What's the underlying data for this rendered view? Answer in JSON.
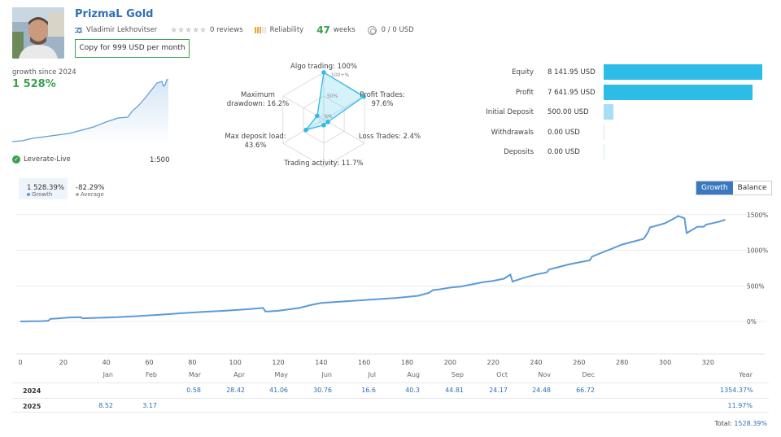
{
  "header": {
    "title": "PrizmaL Gold",
    "author": "Vladimir Lekhovitser",
    "reviews": "0 reviews",
    "reliability_label": "Reliability",
    "weeks_count": "47",
    "weeks_label": "weeks",
    "subscribers": "0 / 0 USD",
    "copy_button": "Copy for 999 USD per month"
  },
  "growth": {
    "label": "growth since 2024",
    "value": "1 528%",
    "broker": "Leverate-Live",
    "leverage": "1:500"
  },
  "radar": {
    "labels": {
      "algo": "Algo trading: 100%",
      "profit_trades_1": "Profit Trades:",
      "profit_trades_2": "97.6%",
      "loss_trades": "Loss Trades: 2.4%",
      "activity": "Trading activity: 11.7%",
      "deposit_load_1": "Max deposit load:",
      "deposit_load_2": "43.6%",
      "drawdown_1": "Maximum",
      "drawdown_2": "drawdown: 16.2%"
    },
    "ticks": [
      "100+%",
      "50%",
      "0%"
    ],
    "values": {
      "algo": 100,
      "profit": 97.6,
      "loss": 2.4,
      "activity": 11.7,
      "deposit_load": 43.6,
      "drawdown": 16.2
    }
  },
  "stats": [
    {
      "label": "Equity",
      "value": "8 141.95 USD",
      "amount": 8141.95
    },
    {
      "label": "Profit",
      "value": "7 641.95 USD",
      "amount": 7641.95
    },
    {
      "label": "Initial Deposit",
      "value": "500.00 USD",
      "amount": 500
    },
    {
      "label": "Withdrawals",
      "value": "0.00 USD",
      "amount": 0
    },
    {
      "label": "Deposits",
      "value": "0.00 USD",
      "amount": 0
    }
  ],
  "summary": {
    "growth_value": "1 528.39%",
    "growth_label": "Growth",
    "average_value": "-82.29%",
    "average_label": "Average"
  },
  "toggle": {
    "growth": "Growth",
    "balance": "Balance"
  },
  "chart_data": {
    "type": "line",
    "xlabel": "",
    "ylabel": "",
    "xlim": [
      0,
      335
    ],
    "ylim": [
      -400,
      1600
    ],
    "xticks": [
      0,
      20,
      40,
      60,
      80,
      100,
      120,
      140,
      160,
      180,
      200,
      220,
      240,
      260,
      280,
      300,
      320
    ],
    "yticks": [
      0,
      500,
      1000,
      1500
    ],
    "ytick_labels": [
      "0%",
      "500%",
      "1000%",
      "1500%"
    ],
    "grid": true,
    "series": [
      {
        "name": "Growth",
        "color": "#5b9bd8",
        "x": [
          0,
          5,
          10,
          13,
          14,
          18,
          22,
          28,
          29,
          35,
          45,
          55,
          65,
          75,
          85,
          95,
          105,
          113,
          114,
          115,
          120,
          125,
          130,
          135,
          140,
          145,
          155,
          165,
          175,
          185,
          190,
          192,
          195,
          200,
          205,
          210,
          215,
          220,
          225,
          228,
          229,
          235,
          240,
          245,
          246,
          250,
          255,
          260,
          265,
          266,
          270,
          275,
          280,
          290,
          292,
          293,
          300,
          305,
          306,
          309,
          310,
          315,
          318,
          319,
          322,
          325,
          328
        ],
        "y": [
          0,
          2,
          5,
          10,
          35,
          45,
          55,
          60,
          45,
          50,
          60,
          75,
          95,
          115,
          135,
          150,
          170,
          190,
          140,
          140,
          150,
          170,
          190,
          230,
          260,
          270,
          290,
          310,
          330,
          360,
          400,
          440,
          450,
          475,
          490,
          520,
          550,
          570,
          600,
          660,
          560,
          620,
          660,
          690,
          730,
          760,
          800,
          830,
          860,
          910,
          960,
          1020,
          1080,
          1160,
          1250,
          1320,
          1380,
          1460,
          1480,
          1450,
          1240,
          1330,
          1330,
          1360,
          1380,
          1400,
          1430
        ]
      }
    ]
  },
  "table": {
    "months": [
      "Jan",
      "Feb",
      "Mar",
      "Apr",
      "May",
      "Jun",
      "Jul",
      "Aug",
      "Sep",
      "Oct",
      "Nov",
      "Dec",
      "Year"
    ],
    "rows": [
      {
        "year": "2024",
        "values": [
          "",
          "",
          "0.58",
          "28.42",
          "41.06",
          "30.76",
          "16.6",
          "40.3",
          "44.81",
          "24.17",
          "24.48",
          "66.72",
          "1354.37%"
        ]
      },
      {
        "year": "2025",
        "values": [
          "8.52",
          "3.17",
          "",
          "",
          "",
          "",
          "",
          "",
          "",
          "",
          "",
          "",
          "11.97%"
        ]
      }
    ],
    "total_label": "Total:",
    "total_value": "1528.39%"
  }
}
